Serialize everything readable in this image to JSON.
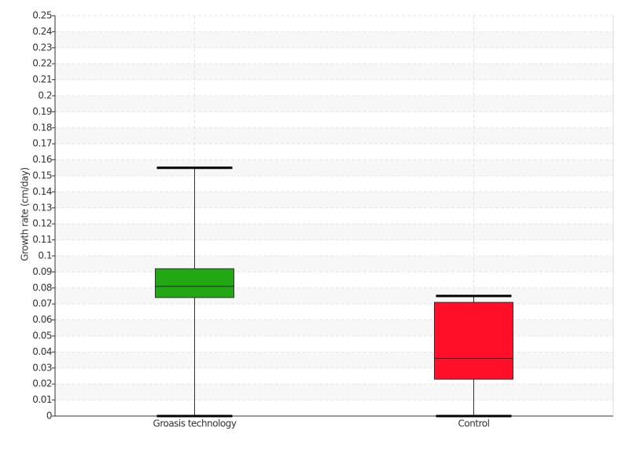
{
  "chart_data": {
    "type": "box",
    "y_label": "Growth rate (cm/day)",
    "categories": [
      "Groasis technology",
      "Control"
    ],
    "boxes": [
      {
        "min": 0,
        "q1": 0.074,
        "median": 0.081,
        "q3": 0.092,
        "max": 0.155,
        "color": "#22a812"
      },
      {
        "min": 0,
        "q1": 0.023,
        "median": 0.036,
        "q3": 0.071,
        "max": 0.075,
        "color": "#ff1028"
      }
    ],
    "ylim": [
      0,
      0.25
    ],
    "yticks": [
      0,
      0.01,
      0.02,
      0.03,
      0.04,
      0.05,
      0.06,
      0.07,
      0.08,
      0.09,
      0.1,
      0.11,
      0.12,
      0.13,
      0.14,
      0.15,
      0.16,
      0.17,
      0.18,
      0.19,
      0.2,
      0.21,
      0.22,
      0.23,
      0.24,
      0.25
    ],
    "grid": true
  }
}
